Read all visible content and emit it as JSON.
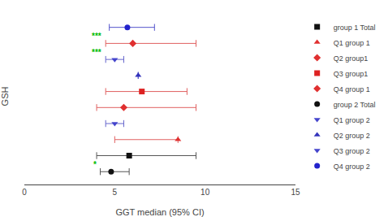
{
  "chart_data": {
    "type": "scatter",
    "xlabel": "GGT median (95% CI)",
    "ylabel": "GSH",
    "xlim": [
      0,
      15
    ],
    "xticks": [
      0,
      5,
      10,
      15
    ],
    "ylim": [
      -0.8,
      10.2
    ],
    "tick_labels": "x",
    "grid": false,
    "legend": "right",
    "background_color": "#ffffff",
    "points": [
      {
        "x": 4.8,
        "y": 0,
        "x_low": 4.2,
        "x_high": 5.8,
        "marker": "circle",
        "color": "#111111",
        "error_color": "#555555",
        "annotation": "*",
        "annotation_color": "#00bb00"
      },
      {
        "x": 5.8,
        "y": 1,
        "x_low": 4.0,
        "x_high": 9.5,
        "marker": "square",
        "color": "#111111",
        "error_color": "#555555"
      },
      {
        "x": 8.5,
        "y": 2,
        "x_low": 5.0,
        "x_high": 8.5,
        "marker": "triangle-up",
        "color": "#e03030",
        "error_color": "#e06060"
      },
      {
        "x": 5.0,
        "y": 3,
        "x_low": 4.5,
        "x_high": 5.5,
        "marker": "triangle-down",
        "color": "#4444cc",
        "error_color": "#6666cc"
      },
      {
        "x": 5.5,
        "y": 4,
        "x_low": 4.0,
        "x_high": 9.5,
        "marker": "diamond",
        "color": "#e03030",
        "error_color": "#e06060"
      },
      {
        "x": 6.5,
        "y": 5,
        "x_low": 4.5,
        "x_high": 9.0,
        "marker": "square",
        "color": "#dd2222",
        "error_color": "#e06060"
      },
      {
        "x": 6.3,
        "y": 6,
        "x_low": 6.3,
        "x_high": 6.3,
        "marker": "triangle-up",
        "color": "#3333bb",
        "error_color": "#5555cc"
      },
      {
        "x": 5.0,
        "y": 7,
        "x_low": 4.5,
        "x_high": 5.5,
        "marker": "triangle-down",
        "color": "#4444cc",
        "error_color": "#6666cc",
        "annotation": "***",
        "annotation_color": "#00bb00"
      },
      {
        "x": 6.0,
        "y": 8,
        "x_low": 4.5,
        "x_high": 9.5,
        "marker": "diamond",
        "color": "#e03030",
        "error_color": "#e06060",
        "annotation": "***",
        "annotation_color": "#00bb00"
      },
      {
        "x": 5.7,
        "y": 9,
        "x_low": 4.7,
        "x_high": 7.2,
        "marker": "circle",
        "color": "#2222cc",
        "error_color": "#5555cc"
      }
    ],
    "legend_entries": [
      {
        "name": "group 1 Total",
        "marker": "square",
        "color": "#111111"
      },
      {
        "name": "Q1 group 1",
        "marker": "triangle-up",
        "color": "#e03030"
      },
      {
        "name": "Q2 group1",
        "marker": "diamond",
        "color": "#e03030"
      },
      {
        "name": "Q3 group1",
        "marker": "square",
        "color": "#dd2222"
      },
      {
        "name": "Q4 group 1",
        "marker": "diamond",
        "color": "#e03030"
      },
      {
        "name": "group 2 Total",
        "marker": "circle",
        "color": "#111111"
      },
      {
        "name": "Q1 group 2",
        "marker": "triangle-down",
        "color": "#4444cc"
      },
      {
        "name": "Q2 group 2",
        "marker": "triangle-up",
        "color": "#3333bb"
      },
      {
        "name": "Q3 group 2",
        "marker": "triangle-down",
        "color": "#4444cc"
      },
      {
        "name": "Q4 group 2",
        "marker": "circle",
        "color": "#2222cc"
      }
    ]
  }
}
